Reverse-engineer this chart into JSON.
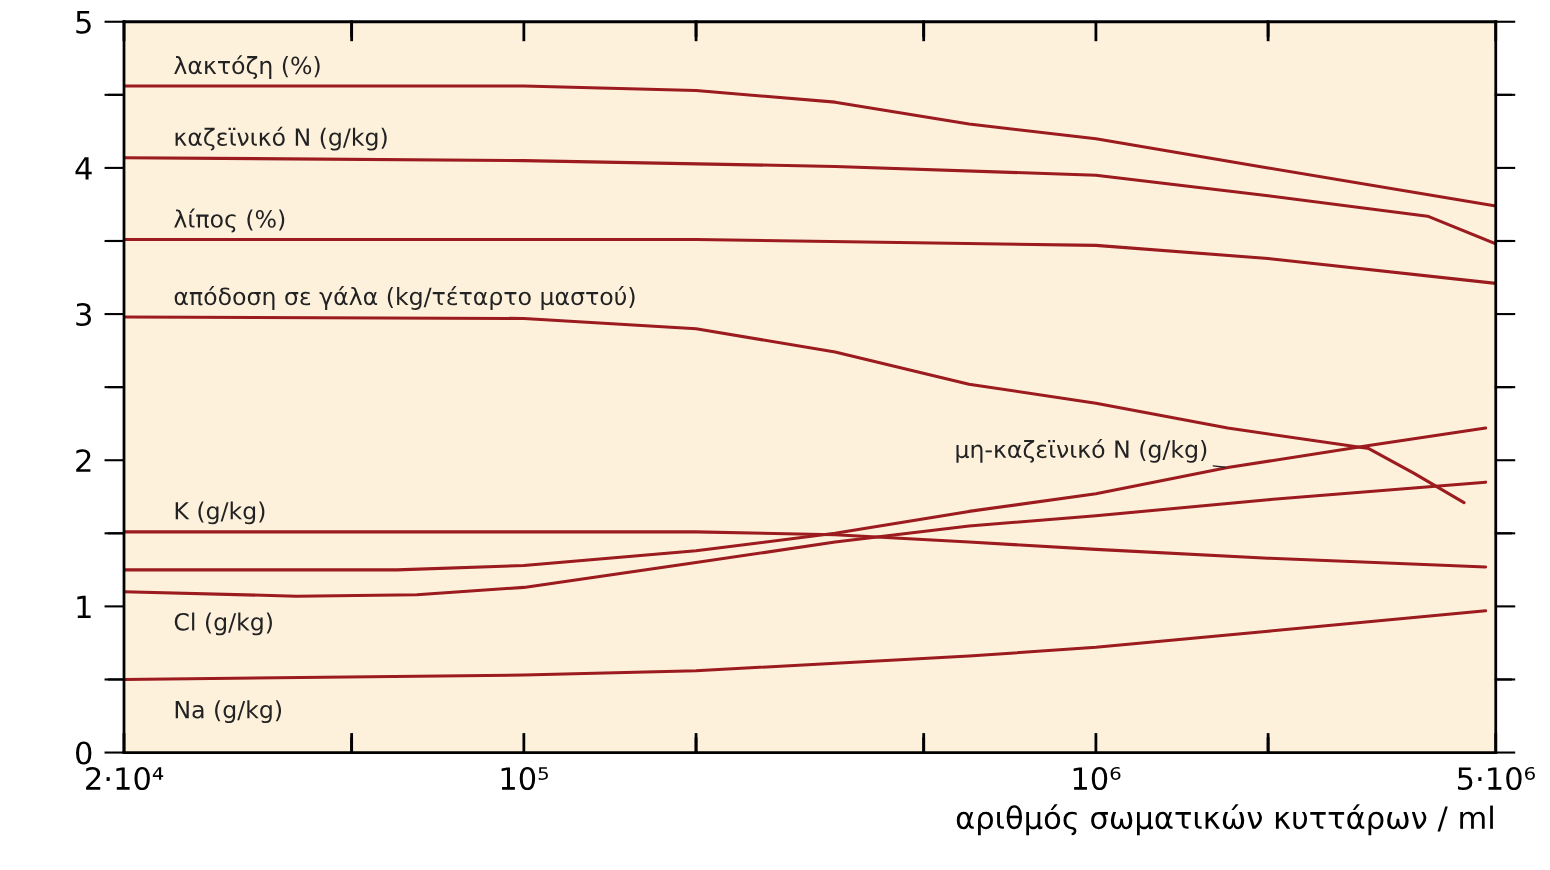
{
  "chart_data": {
    "type": "line",
    "xlabel": "αριθμός σωματικών κυττάρων / ml",
    "log": "x",
    "xlim": [
      20000,
      5000000
    ],
    "xticks": [
      {
        "value": 20000,
        "label": "2·10⁴"
      },
      {
        "value": 50000,
        "label": null
      },
      {
        "value": 100000,
        "label": "10⁵"
      },
      {
        "value": 200000,
        "label": null
      },
      {
        "value": 500000,
        "label": null
      },
      {
        "value": 1000000,
        "label": "10⁶"
      },
      {
        "value": 2000000,
        "label": null
      },
      {
        "value": 5000000,
        "label": "5·10⁶"
      }
    ],
    "ylim": [
      0,
      5
    ],
    "yticks": [
      0,
      {
        "value": 0.5,
        "label": null
      },
      1,
      {
        "value": 1.5,
        "label": null
      },
      2,
      {
        "value": 2.5,
        "label": null
      },
      3,
      {
        "value": 3.5,
        "label": null
      },
      4,
      {
        "value": 4.5,
        "label": null
      },
      5
    ],
    "grid": false,
    "legend": false,
    "marker": "none",
    "line_style": "solid",
    "series": [
      {
        "name": "λακτόζη (%)",
        "color": "#9b1b1f",
        "x": [
          20000,
          100000,
          200000,
          350000,
          600000,
          1000000,
          2000000,
          5000000
        ],
        "values": [
          4.56,
          4.56,
          4.53,
          4.45,
          4.3,
          4.2,
          4.0,
          3.74
        ]
      },
      {
        "name": "καζεϊνικό N (g/kg)",
        "color": "#9b1b1f",
        "x": [
          20000,
          100000,
          350000,
          1000000,
          2000000,
          3800000,
          5000000
        ],
        "values": [
          4.07,
          4.05,
          4.01,
          3.95,
          3.81,
          3.67,
          3.48
        ]
      },
      {
        "name": "λίπος (%)",
        "color": "#9b1b1f",
        "x": [
          20000,
          200000,
          1000000,
          2000000,
          5000000
        ],
        "values": [
          3.51,
          3.51,
          3.47,
          3.38,
          3.21
        ]
      },
      {
        "name": "απόδοση σε γάλα (kg/τέταρτο μαστού)",
        "color": "#9b1b1f",
        "x": [
          20000,
          100000,
          200000,
          350000,
          600000,
          1000000,
          1700000,
          3000000,
          3600000,
          4400000
        ],
        "values": [
          2.98,
          2.97,
          2.9,
          2.74,
          2.52,
          2.39,
          2.22,
          2.08,
          1.91,
          1.71
        ]
      },
      {
        "name": "μη-καζεϊνικό N (g/kg)",
        "color": "#9b1b1f",
        "x": [
          20000,
          60000,
          100000,
          200000,
          350000,
          600000,
          1000000,
          1700000,
          3000000,
          4800000
        ],
        "values": [
          1.25,
          1.25,
          1.28,
          1.38,
          1.5,
          1.65,
          1.77,
          1.95,
          2.1,
          2.22
        ]
      },
      {
        "name": "K (g/kg)",
        "color": "#9b1b1f",
        "x": [
          20000,
          200000,
          350000,
          600000,
          1000000,
          2000000,
          4800000
        ],
        "values": [
          1.51,
          1.51,
          1.49,
          1.44,
          1.39,
          1.33,
          1.27
        ]
      },
      {
        "name": "Cl (g/kg)",
        "color": "#9b1b1f",
        "x": [
          20000,
          40000,
          65000,
          100000,
          200000,
          350000,
          600000,
          1000000,
          2000000,
          4800000
        ],
        "values": [
          1.1,
          1.07,
          1.08,
          1.13,
          1.3,
          1.44,
          1.55,
          1.62,
          1.73,
          1.85
        ]
      },
      {
        "name": "Na (g/kg)",
        "color": "#9b1b1f",
        "x": [
          20000,
          100000,
          200000,
          600000,
          1000000,
          2000000,
          4800000
        ],
        "values": [
          0.5,
          0.53,
          0.56,
          0.66,
          0.72,
          0.83,
          0.97
        ]
      }
    ]
  }
}
